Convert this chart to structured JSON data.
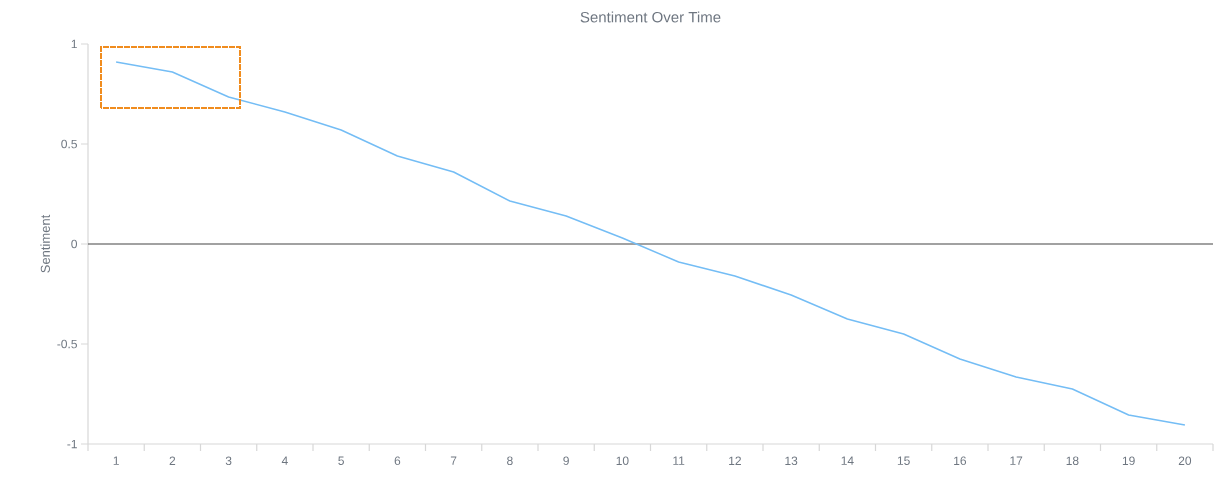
{
  "chart_data": {
    "type": "line",
    "title": "Sentiment Over Time",
    "ylabel": "Sentiment",
    "categories": [
      "1",
      "2",
      "3",
      "4",
      "5",
      "6",
      "7",
      "8",
      "9",
      "10",
      "11",
      "12",
      "13",
      "14",
      "15",
      "16",
      "17",
      "18",
      "19",
      "20"
    ],
    "series": [
      {
        "color": "#74bdf5",
        "values": [
          0.91,
          0.86,
          0.735,
          0.66,
          0.57,
          0.44,
          0.36,
          0.215,
          0.14,
          0.03,
          -0.09,
          -0.16,
          -0.255,
          -0.375,
          -0.45,
          -0.575,
          -0.665,
          -0.725,
          -0.855,
          -0.905
        ]
      }
    ],
    "ylim": [
      -1,
      1
    ],
    "yticks": [
      -1,
      -0.5,
      0,
      0.5,
      1
    ],
    "ref_lines": [
      {
        "axis": "y",
        "value": 0,
        "color": "#444444"
      }
    ],
    "marker": "none",
    "line_style": "solid"
  }
}
